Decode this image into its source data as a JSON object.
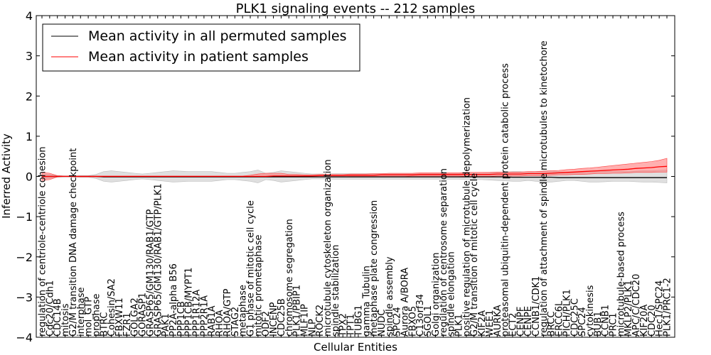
{
  "chart_data": {
    "type": "line",
    "title": "PLK1 signaling events -- 212 samples",
    "xlabel": "Cellular Entities",
    "ylabel": "Inferred Activity",
    "ylim": [
      -4,
      4
    ],
    "yticks": [
      -4,
      -3,
      -2,
      -1,
      0,
      1,
      2,
      3,
      4
    ],
    "ytick_labels": [
      "−4",
      "−3",
      "−2",
      "−1",
      "0",
      "1",
      "2",
      "3",
      "4"
    ],
    "legend_position": "top-left",
    "categories": [
      "regulation of centriole-centriole cohesion",
      "Cdc20/Cdh1",
      "CDC14B",
      "mitosis",
      "G2/M transition DNA damage checkpoint",
      "interphase",
      "mol_GTP",
      "prophase",
      "BTRC",
      "Cohesin/SA2",
      "FBXW11",
      "FZR1",
      "GOLGA2",
      "GORASP1",
      "GRASP65/GM130/RAB1/GTP",
      "GRASP65/GM130/RAB1/GTP/PLK1",
      "PAK1",
      "PP2A-alpha B56",
      "PPP1CB",
      "PPP1CB/MYPT1",
      "PPP1R12A",
      "PPP2R1A",
      "RAB1A",
      "RHOA",
      "RHOA/GTP",
      "STAG2",
      "metaphase",
      "G1 phase of mitotic cell cycle",
      "mitotic prometaphase",
      "ODF2",
      "INCENP",
      "CDC25B",
      "chromosome segregation",
      "PLK1/PBIP1",
      "MLF1IP",
      "NLP",
      "ROCK2",
      "microtubule cytoskeleton organization",
      "spindle stabilization",
      "TPX2",
      "TPT1",
      "TUBG1",
      "gamma Tubulin",
      "metaphase plate congression",
      "NUDC",
      "spindle assembly",
      "SPC24",
      "Aurora A/BORA",
      "FBXO5",
      "C13orf34",
      "SGOL1",
      "Golgi organization",
      "regulation of centrosome separation",
      "spindle elongation",
      "PLK1",
      "positive regulation of microtubule depolymerization",
      "G2/M transition of mitotic cell cycle",
      "KIF2A",
      "WEE1",
      "AURKA",
      "proteasomal ubiquitin-dependent protein catabolic process",
      "ECT2",
      "CENPF",
      "CENPE",
      "CCNB1/CDK1",
      "regulation of attachment of spindle microtubules to kinetochore",
      "BRCC",
      "ERCC6L",
      "PICH/PLK1",
      "CDC25C",
      "SPC24",
      "cytokinesis",
      "BUB1",
      "CCNB1",
      "PRC1",
      "microtubule-based process",
      "MKLP2/PLK1",
      "APC/C/CDC20",
      "KIF20A",
      "CDC20",
      "Hec1/SPC24",
      "PLK1/PRC1-2"
    ],
    "series": [
      {
        "name": "Mean activity in all permuted samples",
        "color": "#000000",
        "values": [
          0.0,
          0.0,
          0.0,
          0.0,
          0.0,
          0.0,
          0.0,
          0.0,
          -0.01,
          -0.01,
          -0.01,
          -0.01,
          -0.01,
          -0.01,
          -0.01,
          -0.01,
          -0.01,
          -0.01,
          -0.01,
          -0.01,
          -0.01,
          -0.01,
          -0.01,
          -0.01,
          -0.01,
          -0.01,
          -0.01,
          -0.01,
          -0.01,
          -0.01,
          -0.01,
          -0.01,
          -0.01,
          -0.01,
          -0.01,
          -0.01,
          -0.01,
          -0.01,
          -0.01,
          -0.01,
          -0.01,
          -0.01,
          -0.01,
          -0.01,
          -0.01,
          -0.01,
          -0.01,
          -0.01,
          -0.01,
          -0.01,
          -0.01,
          -0.01,
          -0.01,
          -0.01,
          -0.01,
          -0.01,
          -0.01,
          -0.01,
          -0.01,
          -0.01,
          -0.01,
          -0.02,
          -0.02,
          -0.02,
          -0.02,
          -0.02,
          -0.02,
          -0.03,
          -0.03,
          -0.03,
          -0.03,
          -0.03,
          -0.03,
          -0.03,
          -0.03,
          -0.03,
          -0.03,
          -0.03,
          -0.03,
          -0.03,
          -0.03,
          -0.03
        ],
        "band_lower": [
          -0.05,
          -0.05,
          -0.02,
          -0.01,
          -0.01,
          -0.02,
          -0.02,
          -0.05,
          -0.12,
          -0.14,
          -0.12,
          -0.1,
          -0.08,
          -0.06,
          -0.08,
          -0.1,
          -0.12,
          -0.14,
          -0.13,
          -0.12,
          -0.12,
          -0.12,
          -0.12,
          -0.1,
          -0.08,
          -0.08,
          -0.1,
          -0.12,
          -0.16,
          -0.08,
          -0.1,
          -0.14,
          -0.12,
          -0.1,
          -0.08,
          -0.06,
          -0.06,
          -0.06,
          -0.07,
          -0.07,
          -0.07,
          -0.07,
          -0.07,
          -0.07,
          -0.07,
          -0.07,
          -0.07,
          -0.07,
          -0.07,
          -0.07,
          -0.07,
          -0.07,
          -0.07,
          -0.07,
          -0.07,
          -0.08,
          -0.08,
          -0.08,
          -0.09,
          -0.1,
          -0.11,
          -0.12,
          -0.12,
          -0.1,
          -0.12,
          -0.14,
          -0.14,
          -0.12,
          -0.1,
          -0.1,
          -0.12,
          -0.14,
          -0.14,
          -0.13,
          -0.12,
          -0.12,
          -0.12,
          -0.13,
          -0.14,
          -0.14,
          -0.15,
          -0.16
        ],
        "band_upper": [
          0.05,
          0.05,
          0.02,
          0.01,
          0.01,
          0.02,
          0.02,
          0.05,
          0.12,
          0.14,
          0.12,
          0.1,
          0.08,
          0.06,
          0.08,
          0.1,
          0.12,
          0.14,
          0.13,
          0.12,
          0.12,
          0.12,
          0.12,
          0.1,
          0.08,
          0.08,
          0.1,
          0.12,
          0.16,
          0.08,
          0.1,
          0.14,
          0.12,
          0.1,
          0.08,
          0.06,
          0.06,
          0.06,
          0.07,
          0.07,
          0.07,
          0.07,
          0.07,
          0.07,
          0.07,
          0.07,
          0.07,
          0.07,
          0.07,
          0.07,
          0.07,
          0.07,
          0.07,
          0.07,
          0.07,
          0.08,
          0.08,
          0.08,
          0.09,
          0.1,
          0.11,
          0.12,
          0.12,
          0.1,
          0.12,
          0.14,
          0.14,
          0.12,
          0.1,
          0.1,
          0.12,
          0.14,
          0.14,
          0.13,
          0.12,
          0.12,
          0.12,
          0.13,
          0.14,
          0.14,
          0.15,
          0.16
        ]
      },
      {
        "name": "Mean activity in patient samples",
        "color": "#ff0000",
        "values": [
          0.0,
          0.0,
          0.0,
          0.0,
          0.0,
          0.0,
          0.0,
          0.0,
          0.0,
          0.0,
          0.0,
          0.0,
          0.0,
          0.0,
          0.0,
          0.0,
          0.0,
          0.0,
          0.0,
          0.0,
          0.0,
          0.0,
          0.0,
          0.0,
          0.0,
          0.0,
          0.0,
          0.0,
          0.0,
          0.0,
          0.01,
          0.01,
          0.01,
          0.01,
          0.01,
          0.01,
          0.02,
          0.02,
          0.02,
          0.02,
          0.03,
          0.03,
          0.03,
          0.03,
          0.04,
          0.04,
          0.04,
          0.04,
          0.04,
          0.05,
          0.05,
          0.05,
          0.05,
          0.05,
          0.05,
          0.05,
          0.05,
          0.05,
          0.05,
          0.06,
          0.06,
          0.06,
          0.06,
          0.07,
          0.07,
          0.07,
          0.08,
          0.09,
          0.1,
          0.11,
          0.12,
          0.13,
          0.14,
          0.15,
          0.16,
          0.17,
          0.18,
          0.2,
          0.21,
          0.22,
          0.24,
          0.25
        ],
        "band_lower": [
          -0.1,
          -0.08,
          -0.01,
          0.0,
          -0.01,
          -0.01,
          -0.01,
          -0.01,
          -0.01,
          -0.01,
          -0.01,
          -0.01,
          -0.01,
          -0.01,
          -0.01,
          -0.01,
          -0.01,
          -0.01,
          -0.01,
          -0.01,
          -0.01,
          -0.01,
          -0.01,
          -0.01,
          -0.01,
          -0.01,
          -0.01,
          -0.01,
          -0.01,
          -0.01,
          -0.01,
          -0.01,
          -0.01,
          -0.01,
          -0.01,
          -0.01,
          -0.01,
          -0.01,
          -0.01,
          -0.01,
          0.0,
          0.0,
          0.0,
          0.0,
          0.0,
          0.0,
          0.0,
          0.0,
          0.01,
          0.01,
          0.01,
          0.01,
          0.01,
          0.01,
          0.01,
          0.0,
          0.0,
          0.0,
          0.0,
          0.01,
          0.01,
          0.01,
          0.01,
          0.02,
          0.02,
          0.02,
          0.03,
          0.04,
          0.04,
          0.05,
          0.05,
          0.06,
          0.07,
          0.07,
          0.08,
          0.08,
          0.09,
          0.1,
          0.1,
          0.1,
          0.11,
          0.11
        ],
        "band_upper": [
          0.1,
          0.08,
          0.02,
          0.01,
          0.01,
          0.01,
          0.01,
          0.01,
          0.01,
          0.01,
          0.01,
          0.01,
          0.01,
          0.01,
          0.01,
          0.01,
          0.01,
          0.01,
          0.01,
          0.01,
          0.01,
          0.01,
          0.01,
          0.01,
          0.01,
          0.01,
          0.01,
          0.03,
          0.06,
          0.08,
          0.08,
          0.08,
          0.05,
          0.05,
          0.04,
          0.04,
          0.05,
          0.05,
          0.05,
          0.05,
          0.06,
          0.06,
          0.06,
          0.07,
          0.07,
          0.08,
          0.08,
          0.08,
          0.08,
          0.09,
          0.09,
          0.09,
          0.09,
          0.09,
          0.09,
          0.1,
          0.1,
          0.1,
          0.1,
          0.11,
          0.11,
          0.11,
          0.11,
          0.12,
          0.12,
          0.13,
          0.14,
          0.15,
          0.17,
          0.18,
          0.2,
          0.21,
          0.23,
          0.25,
          0.27,
          0.29,
          0.31,
          0.33,
          0.35,
          0.37,
          0.4,
          0.45
        ]
      }
    ]
  }
}
